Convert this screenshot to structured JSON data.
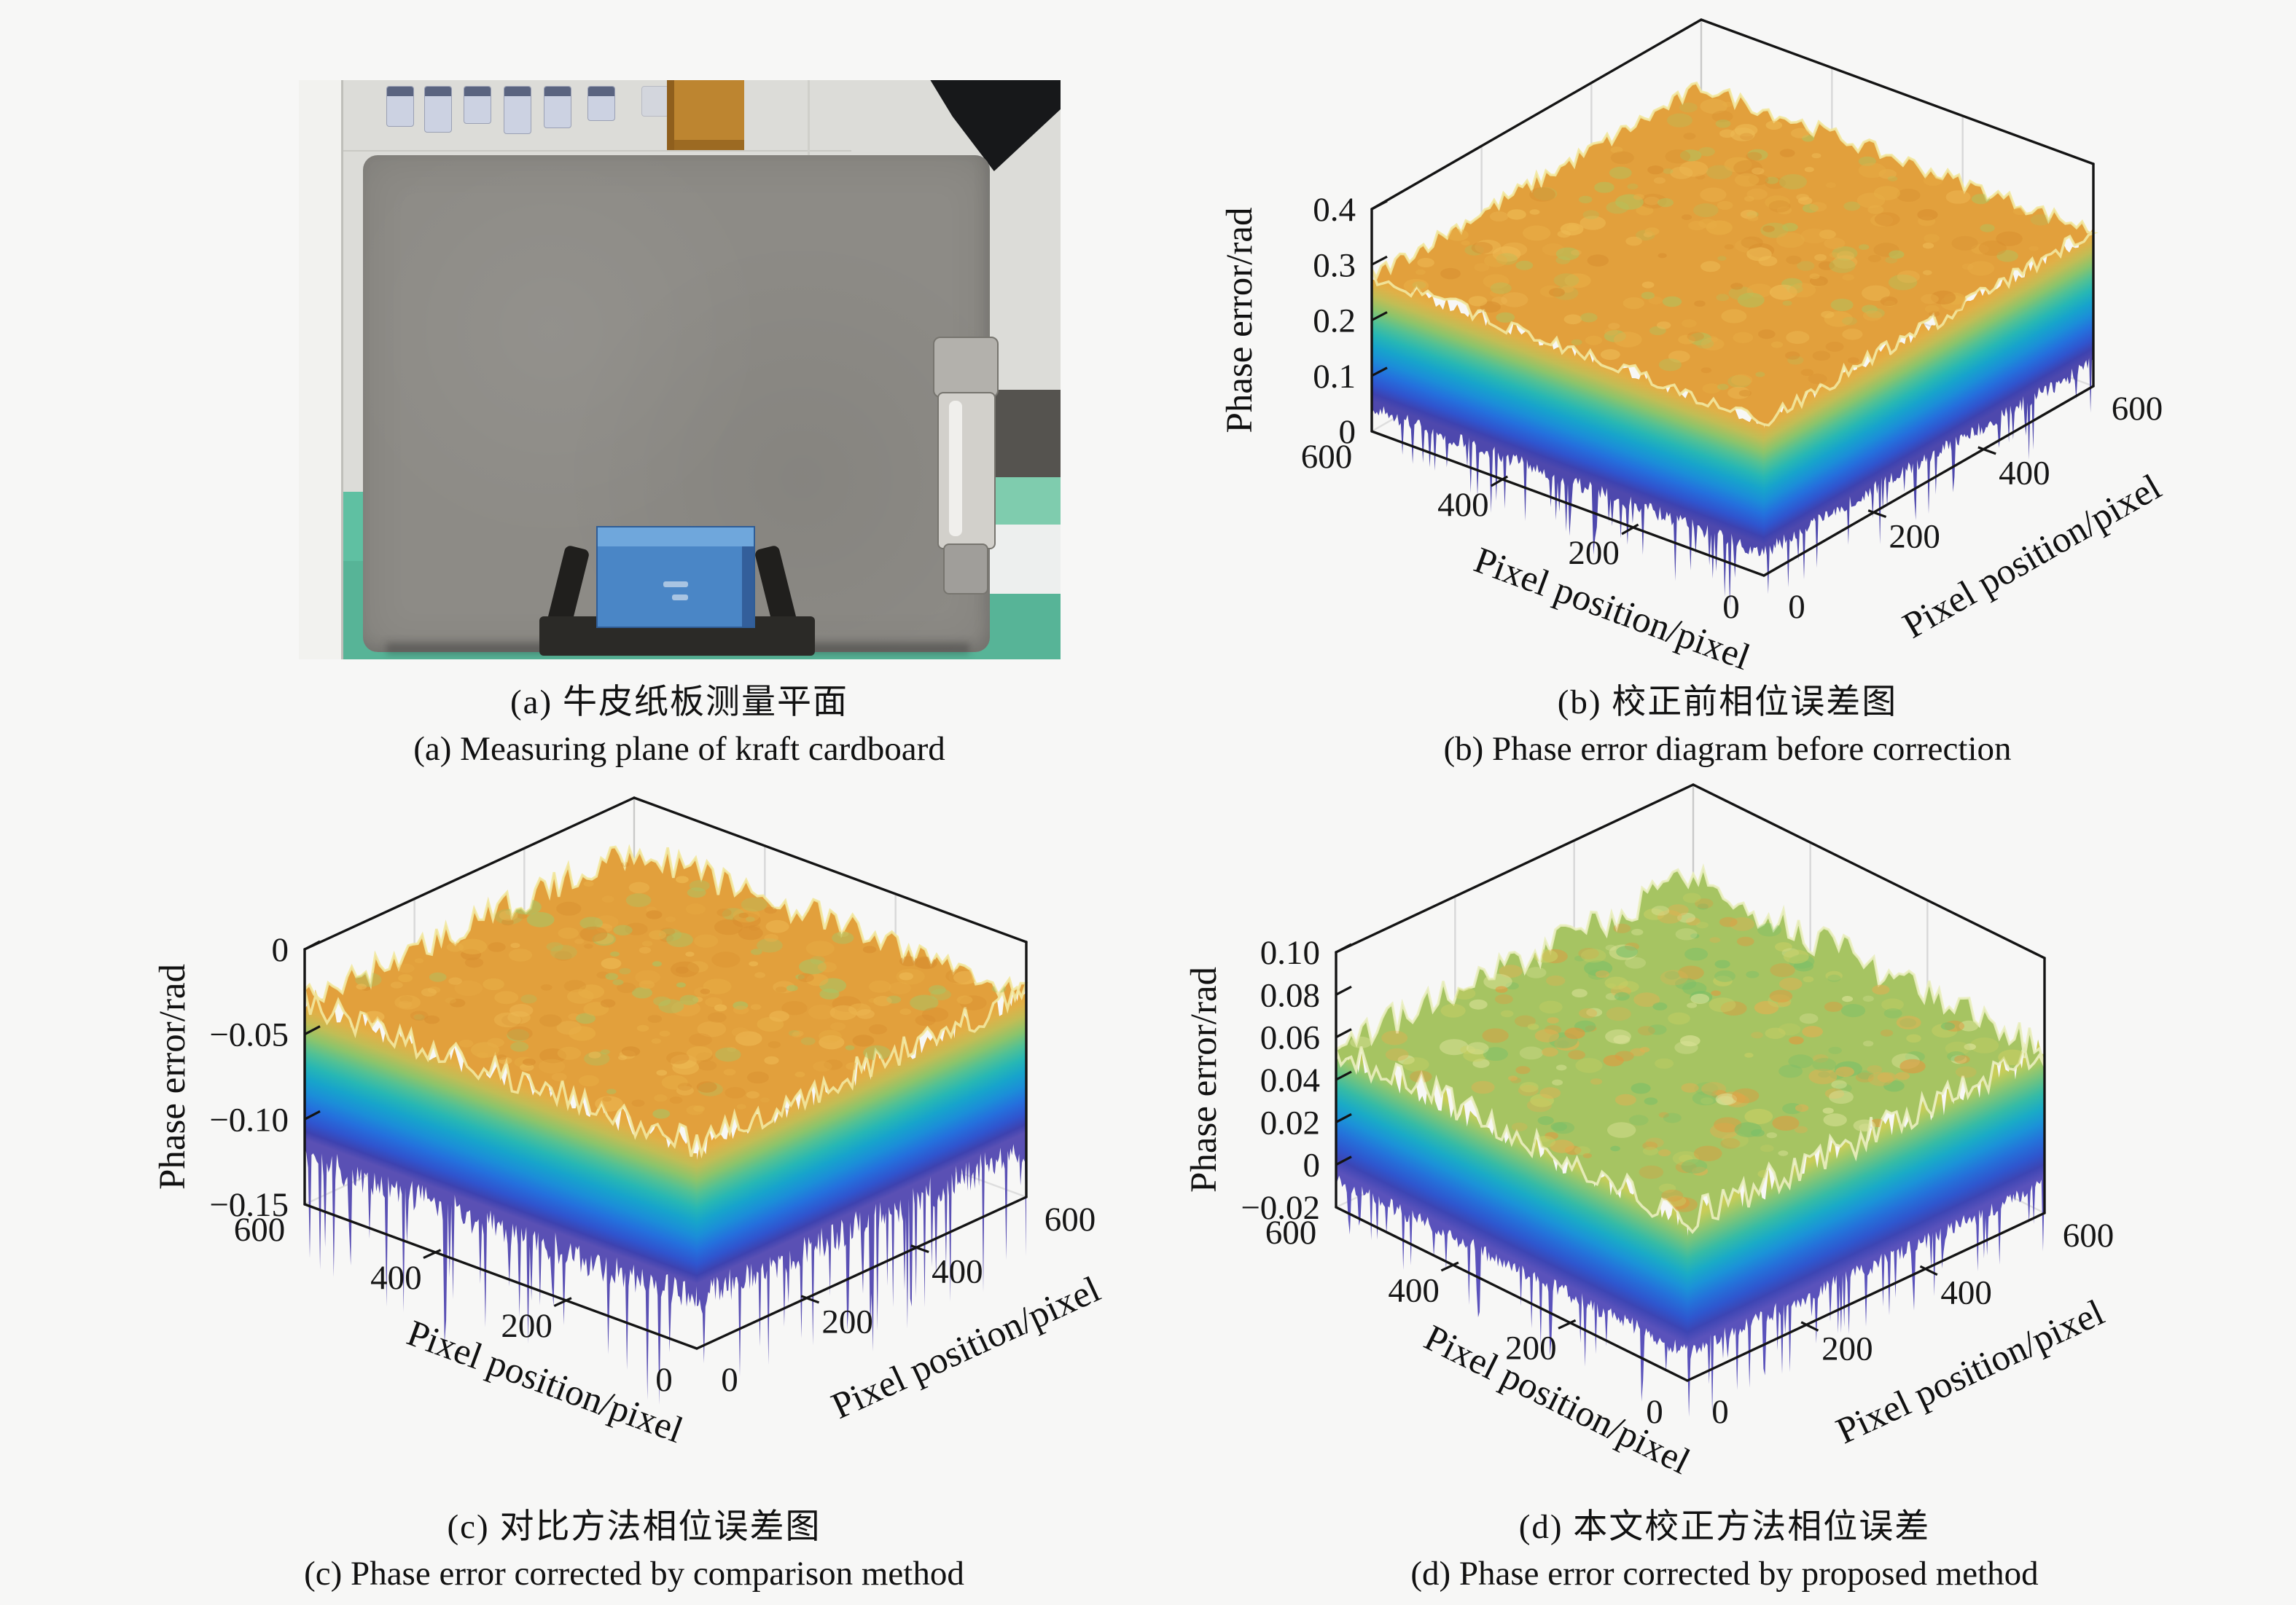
{
  "figure": {
    "background": "#f7f7f6"
  },
  "panels": {
    "a": {
      "caption_zh": "(a) 牛皮纸板测量平面",
      "caption_en": "(a) Measuring plane of kraft cardboard",
      "photo": {
        "description": "kraft cardboard measuring plane standing on a clamp stand on a green table",
        "colors": {
          "wall": "#dcdcd8",
          "left_column": "#f2f2ef",
          "table": "#5fc0a2",
          "cardboard": "#8d8b86",
          "clip": "#d2d0cb",
          "stand_box": "#4a86c6",
          "stand_base": "#2b2a27",
          "orange_item": "#bd8530",
          "shelf_item": "#ccd2e2"
        }
      }
    },
    "b": {
      "caption_zh": "(b) 校正前相位误差图",
      "caption_en": "(b) Phase error diagram before correction"
    },
    "c": {
      "caption_zh": "(c) 对比方法相位误差图",
      "caption_en": "(c) Phase error corrected by comparison method"
    },
    "d": {
      "caption_zh": "(d) 本文校正方法相位误差",
      "caption_en": "(d) Phase error corrected by proposed method"
    }
  },
  "chart_data": [
    {
      "id": "b",
      "type": "surface",
      "title": "(b) Phase error diagram before correction",
      "xlabel": "Pixel position/pixel",
      "ylabel": "Pixel position/pixel",
      "zlabel": "Phase error/rad",
      "x_range": [
        0,
        600
      ],
      "y_range": [
        0,
        600
      ],
      "x_ticks": [
        0,
        200,
        400,
        600
      ],
      "y_ticks": [
        0,
        200,
        400,
        600
      ],
      "zlim": [
        0,
        0.4
      ],
      "z_ticks": [
        {
          "value": 0,
          "label": "0"
        },
        {
          "value": 0.1,
          "label": "0.1"
        },
        {
          "value": 0.2,
          "label": "0.2"
        },
        {
          "value": 0.3,
          "label": "0.3"
        },
        {
          "value": 0.4,
          "label": "0.4"
        }
      ],
      "grid_lines": [
        200,
        400
      ],
      "legend": "none",
      "seed": 7,
      "surface": {
        "shape": "flat noisy slab over full 600x600 domain",
        "top_mean": 0.28,
        "top_noise": 0.015,
        "bottom_mean": 0.055,
        "bottom_noise": 0.05,
        "top_color": "#e2a03c",
        "mottle_colors": [
          "#eebb55",
          "#d88f30",
          "#e8ae46",
          "#b5c05a"
        ],
        "fringe_color": "#f2e8a0",
        "colormap": "parula",
        "side_gradient": [
          {
            "o": 0.0,
            "c": "#e8a83e"
          },
          {
            "o": 0.07,
            "c": "#dfb148"
          },
          {
            "o": 0.16,
            "c": "#c1bd55"
          },
          {
            "o": 0.26,
            "c": "#8cc46b"
          },
          {
            "o": 0.36,
            "c": "#52c194"
          },
          {
            "o": 0.46,
            "c": "#27b7b4"
          },
          {
            "o": 0.56,
            "c": "#17a4cb"
          },
          {
            "o": 0.66,
            "c": "#1b8ed8"
          },
          {
            "o": 0.76,
            "c": "#2470dd"
          },
          {
            "o": 0.86,
            "c": "#2f55cf"
          },
          {
            "o": 0.94,
            "c": "#3d42b0"
          },
          {
            "o": 1.0,
            "c": "#4e48ad"
          }
        ]
      }
    },
    {
      "id": "c",
      "type": "surface",
      "title": "(c) Phase error corrected by comparison method",
      "xlabel": "Pixel position/pixel",
      "ylabel": "Pixel position/pixel",
      "zlabel": "Phase error/rad",
      "x_range": [
        0,
        600
      ],
      "y_range": [
        0,
        600
      ],
      "x_ticks": [
        0,
        200,
        400,
        600
      ],
      "y_ticks": [
        0,
        200,
        400,
        600
      ],
      "zlim": [
        -0.15,
        0
      ],
      "z_ticks": [
        {
          "value": -0.15,
          "label": "−0.15"
        },
        {
          "value": -0.1,
          "label": "−0.10"
        },
        {
          "value": -0.05,
          "label": "−0.05"
        },
        {
          "value": 0,
          "label": "0"
        }
      ],
      "grid_lines": [
        200,
        400
      ],
      "legend": "none",
      "seed": 11,
      "surface": {
        "shape": "flat noisy slab over full 600x600 domain with deep downward spikes",
        "top_mean": -0.03,
        "top_noise": 0.009,
        "bottom_mean": -0.112,
        "bottom_noise": 0.035,
        "top_color": "#e2a03c",
        "mottle_colors": [
          "#eebb55",
          "#d88f30",
          "#e8ae46",
          "#a9c464"
        ],
        "fringe_color": "#f2e8a0",
        "colormap": "parula",
        "side_gradient": [
          {
            "o": 0.0,
            "c": "#e8a83e"
          },
          {
            "o": 0.07,
            "c": "#dfb148"
          },
          {
            "o": 0.16,
            "c": "#c1bd55"
          },
          {
            "o": 0.26,
            "c": "#8cc46b"
          },
          {
            "o": 0.36,
            "c": "#52c194"
          },
          {
            "o": 0.46,
            "c": "#27b7b4"
          },
          {
            "o": 0.56,
            "c": "#17a4cb"
          },
          {
            "o": 0.66,
            "c": "#1b8ed8"
          },
          {
            "o": 0.76,
            "c": "#2470dd"
          },
          {
            "o": 0.86,
            "c": "#2f55cf"
          },
          {
            "o": 0.94,
            "c": "#3d42b0"
          },
          {
            "o": 1.0,
            "c": "#5a50b4"
          }
        ]
      }
    },
    {
      "id": "d",
      "type": "surface",
      "title": "(d) Phase error corrected by proposed method",
      "xlabel": "Pixel position/pixel",
      "ylabel": "Pixel position/pixel",
      "zlabel": "Phase error/rad",
      "x_range": [
        0,
        600
      ],
      "y_range": [
        0,
        600
      ],
      "x_ticks": [
        0,
        200,
        400,
        600
      ],
      "y_ticks": [
        0,
        200,
        400,
        600
      ],
      "zlim": [
        -0.02,
        0.1
      ],
      "z_ticks": [
        {
          "value": -0.02,
          "label": "−0.02"
        },
        {
          "value": 0,
          "label": "0"
        },
        {
          "value": 0.02,
          "label": "0.02"
        },
        {
          "value": 0.04,
          "label": "0.04"
        },
        {
          "value": 0.06,
          "label": "0.06"
        },
        {
          "value": 0.08,
          "label": "0.08"
        },
        {
          "value": 0.1,
          "label": "0.10"
        }
      ],
      "grid_lines": [
        200,
        400
      ],
      "legend": "none",
      "seed": 13,
      "surface": {
        "shape": "flat noisy slab over full 600x600 domain, green-yellow mottled top",
        "top_mean": 0.056,
        "top_noise": 0.008,
        "bottom_mean": -0.003,
        "bottom_noise": 0.014,
        "top_color": "#a6c462",
        "mottle_colors": [
          "#e0993f",
          "#c9cf63",
          "#7abf68",
          "#e3b052",
          "#dde49a"
        ],
        "fringe_color": "#eaeec0",
        "colormap": "parula",
        "side_gradient": [
          {
            "o": 0.0,
            "c": "#c8cd58"
          },
          {
            "o": 0.08,
            "c": "#a4c966"
          },
          {
            "o": 0.2,
            "c": "#6cc383"
          },
          {
            "o": 0.32,
            "c": "#35bba6"
          },
          {
            "o": 0.44,
            "c": "#1aabc6"
          },
          {
            "o": 0.56,
            "c": "#1b92d8"
          },
          {
            "o": 0.68,
            "c": "#2472da"
          },
          {
            "o": 0.8,
            "c": "#2e57cf"
          },
          {
            "o": 0.9,
            "c": "#3c45b4"
          },
          {
            "o": 1.0,
            "c": "#5a52bb"
          }
        ]
      }
    }
  ]
}
